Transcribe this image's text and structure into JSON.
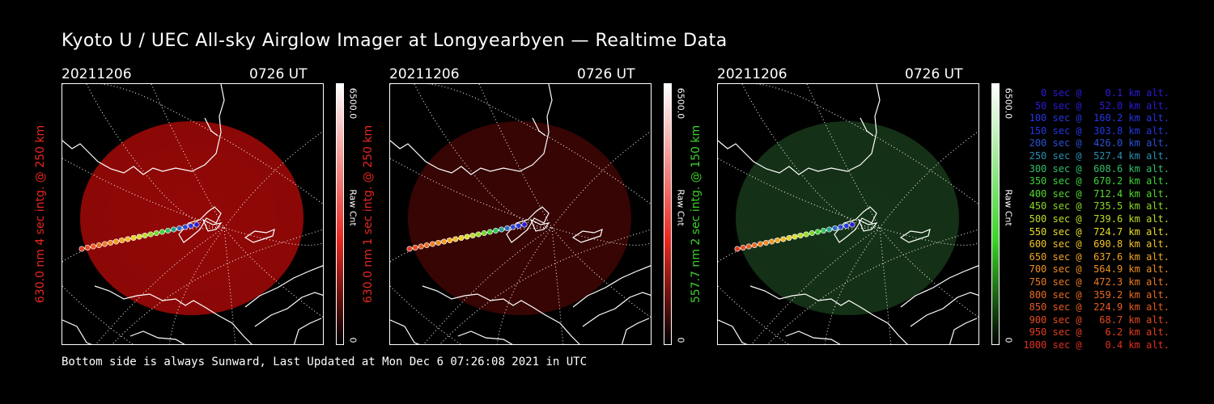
{
  "title": "Kyoto U / UEC All-sky Airglow Imager at Longyearbyen — Realtime Data",
  "footer": "Bottom side is always Sunward, Last Updated at Mon Dec  6 07:26:08 2021 in UTC",
  "chart_data": [
    {
      "type": "heatmap",
      "date": "20211206",
      "time": "0726 UT",
      "ylabel": "630.0 nm 4 sec intg. @ 250 km",
      "colorbar": {
        "max_label": "6500.0",
        "min_label": "0",
        "unit_label": "Raw Cnt",
        "max": 6500.0,
        "min": 0
      },
      "label_color": "#e8271f",
      "glow": {
        "color": "#ac0a08",
        "intensity": 0.85
      }
    },
    {
      "type": "heatmap",
      "date": "20211206",
      "time": "0726 UT",
      "ylabel": "630.0 nm 1 sec intg. @ 250 km",
      "colorbar": {
        "max_label": "6500.0",
        "min_label": "0",
        "unit_label": "Raw Cnt",
        "max": 6500.0,
        "min": 0
      },
      "label_color": "#e8271f",
      "glow": {
        "color": "#3f0604",
        "intensity": 0.9
      }
    },
    {
      "type": "heatmap",
      "date": "20211206",
      "time": "0726 UT",
      "ylabel": "557.7 nm 2 sec intg. @ 150 km",
      "colorbar": {
        "max_label": "6500.0",
        "min_label": "0",
        "unit_label": "Raw Cnt",
        "max": 6500.0,
        "min": 0
      },
      "label_color": "#3cd22a",
      "glow": {
        "color": "#17381a",
        "intensity": 0.9
      }
    }
  ],
  "legend": [
    {
      "text": "   0 sec @    0.1 km alt.",
      "color": "#2b1bd8"
    },
    {
      "text": "  50 sec @   52.0 km alt.",
      "color": "#2b1bd8"
    },
    {
      "text": " 100 sec @  160.2 km alt.",
      "color": "#2436e0"
    },
    {
      "text": " 150 sec @  303.8 km alt.",
      "color": "#2436e0"
    },
    {
      "text": " 200 sec @  426.0 km alt.",
      "color": "#2a52d6"
    },
    {
      "text": " 250 sec @  527.4 km alt.",
      "color": "#2a8fb0"
    },
    {
      "text": " 300 sec @  608.6 km alt.",
      "color": "#2fbf6a"
    },
    {
      "text": " 350 sec @  670.2 km alt.",
      "color": "#3fd23a"
    },
    {
      "text": " 400 sec @  712.4 km alt.",
      "color": "#56d92e"
    },
    {
      "text": " 450 sec @  735.5 km alt.",
      "color": "#8ad826"
    },
    {
      "text": " 500 sec @  739.6 km alt.",
      "color": "#bfdc26"
    },
    {
      "text": " 550 sec @  724.7 km alt.",
      "color": "#e8df26"
    },
    {
      "text": " 600 sec @  690.8 km alt.",
      "color": "#f2c424"
    },
    {
      "text": " 650 sec @  637.6 km alt.",
      "color": "#f0a622"
    },
    {
      "text": " 700 sec @  564.9 km alt.",
      "color": "#ee9020"
    },
    {
      "text": " 750 sec @  472.3 km alt.",
      "color": "#ec7a20"
    },
    {
      "text": " 800 sec @  359.2 km alt.",
      "color": "#ea6a20"
    },
    {
      "text": " 850 sec @  224.9 km alt.",
      "color": "#e85a20"
    },
    {
      "text": " 900 sec @   68.7 km alt.",
      "color": "#e64a20"
    },
    {
      "text": " 950 sec @    6.2 km alt.",
      "color": "#e43c20"
    },
    {
      "text": "1000 sec @    0.4 km alt.",
      "color": "#e22e20"
    }
  ]
}
